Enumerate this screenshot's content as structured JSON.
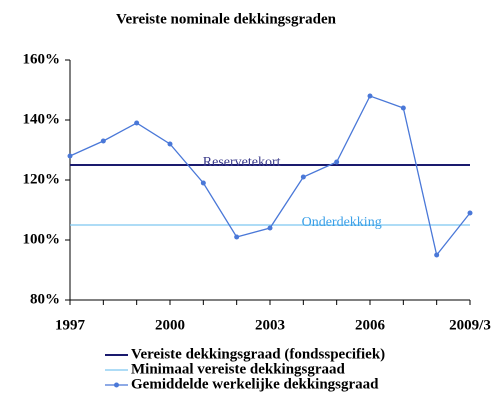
{
  "chart_data": {
    "type": "line",
    "title": "Vereiste nominale dekkingsgraden",
    "categories": [
      "1997",
      null,
      null,
      "2000",
      null,
      null,
      "2003",
      null,
      null,
      "2006",
      null,
      null,
      "2009/3"
    ],
    "series": [
      {
        "name": "Vereiste dekkingsgraad (fondsspecifiek)",
        "color": "#1a1a6e",
        "values": [
          125,
          125,
          125,
          125,
          125,
          125,
          125,
          125,
          125,
          125,
          125,
          125,
          125
        ]
      },
      {
        "name": "Minimaal vereiste dekkingsgraad",
        "color": "#7ec8f0",
        "values": [
          105,
          105,
          105,
          105,
          105,
          105,
          105,
          105,
          105,
          105,
          105,
          105,
          105
        ]
      },
      {
        "name": "Gemiddelde werkelijke dekkingsgraad",
        "color": "#4a78d8",
        "values": [
          128,
          133,
          139,
          132,
          119,
          101,
          104,
          121,
          126,
          148,
          144,
          95,
          109
        ],
        "markers": true
      }
    ],
    "annotations": [
      {
        "text": "Reservetekort",
        "x": 5,
        "y": 125,
        "color": "#3a3a8a"
      },
      {
        "text": "Onderdekking",
        "x": 8,
        "y": 105,
        "color": "#3aa0e8"
      }
    ],
    "ylim": [
      80,
      160
    ],
    "yticks": [
      {
        "value": 80,
        "label": "80%"
      },
      {
        "value": 100,
        "label": "100%"
      },
      {
        "value": 120,
        "label": "120%"
      },
      {
        "value": 140,
        "label": "140%"
      },
      {
        "value": 160,
        "label": "160%"
      }
    ],
    "grid": false
  }
}
